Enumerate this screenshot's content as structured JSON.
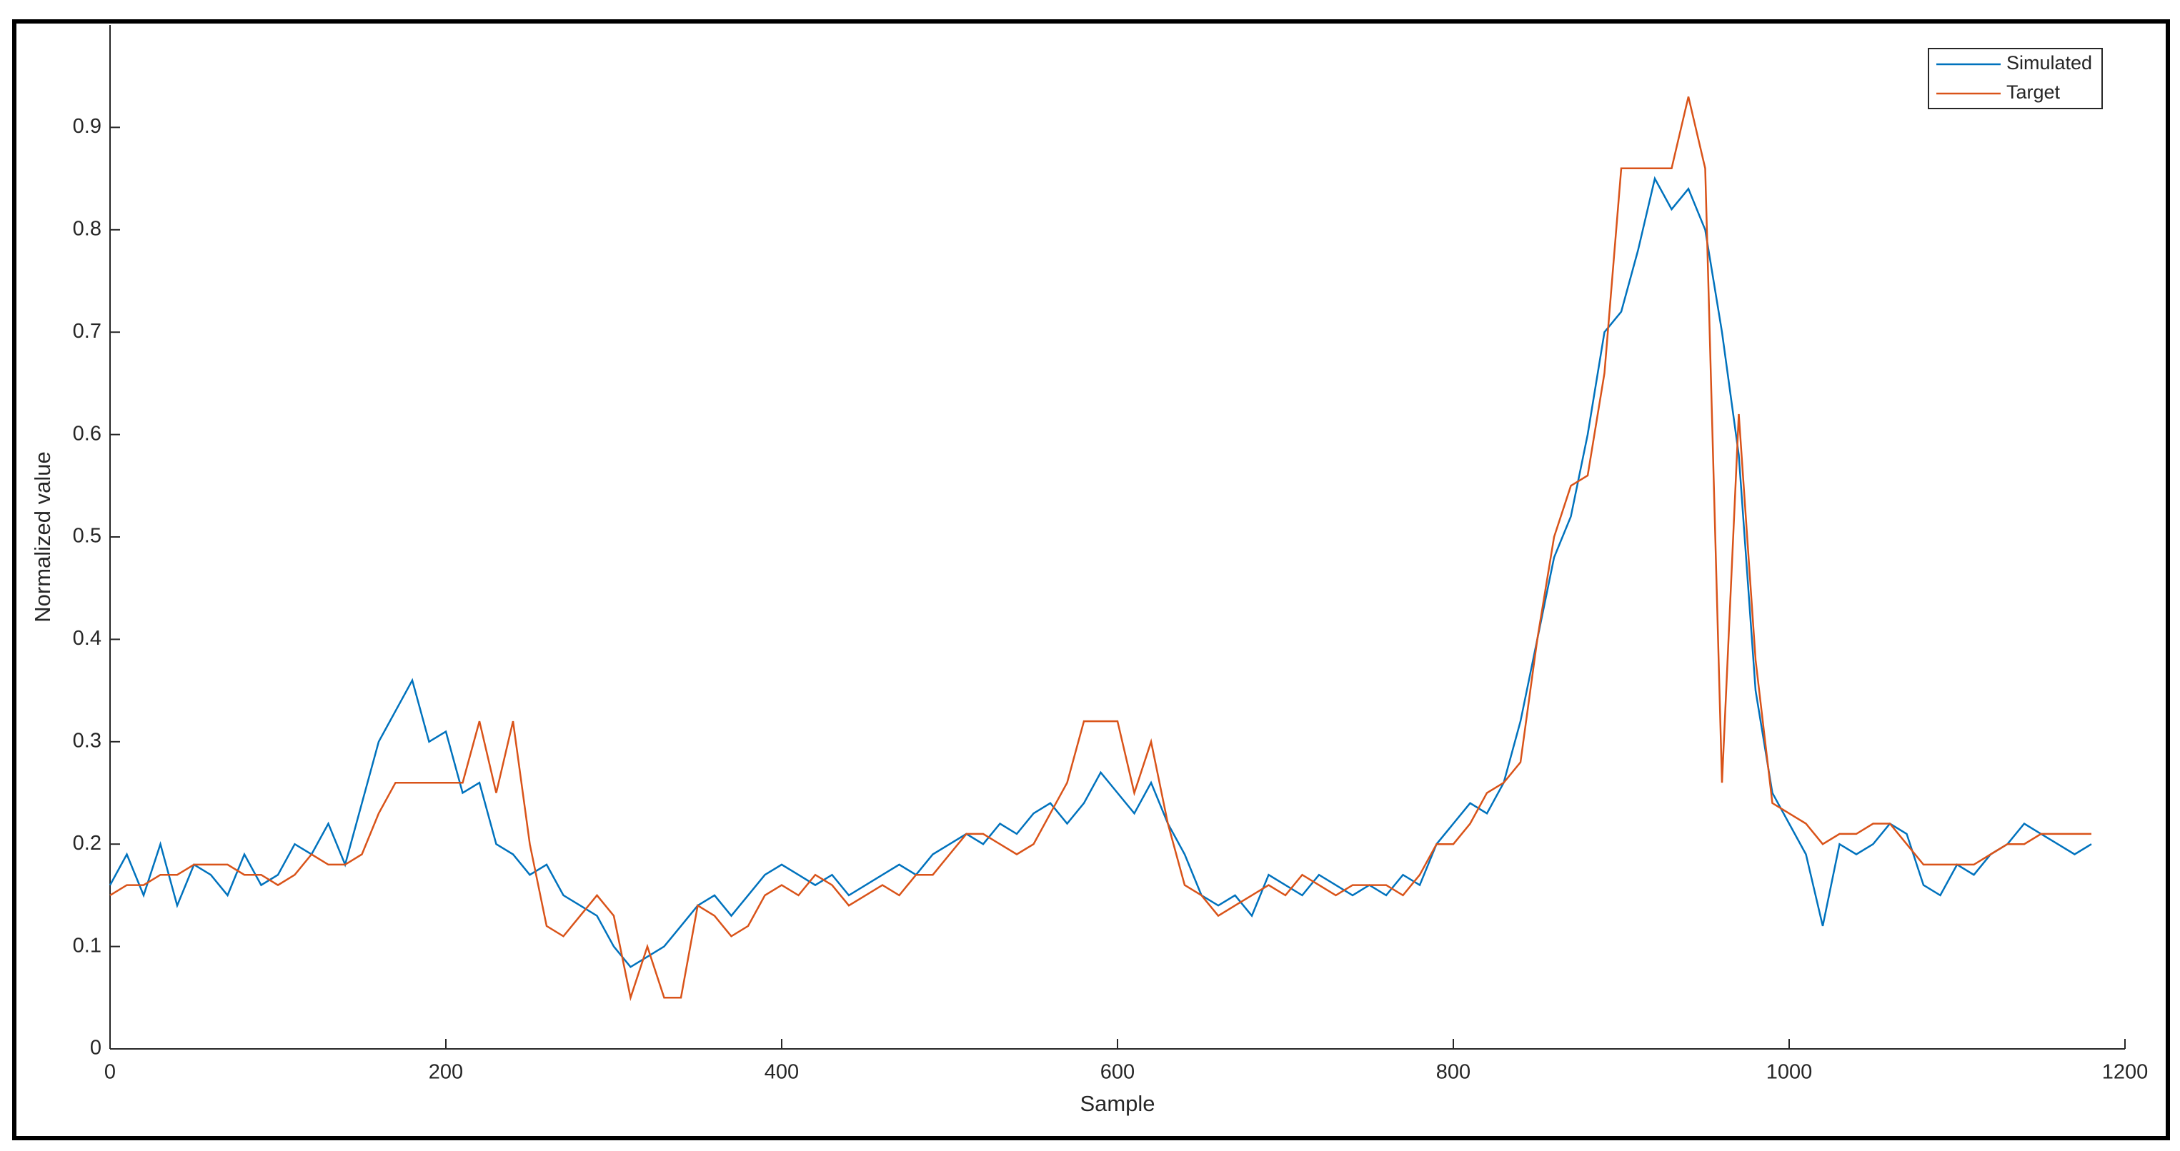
{
  "chart_data": {
    "type": "line",
    "xlabel": "Sample",
    "ylabel": "Normalized value",
    "x": [
      0,
      10,
      20,
      30,
      40,
      50,
      60,
      70,
      80,
      90,
      100,
      110,
      120,
      130,
      140,
      150,
      160,
      170,
      180,
      190,
      200,
      210,
      220,
      230,
      240,
      250,
      260,
      270,
      280,
      290,
      300,
      310,
      320,
      330,
      340,
      350,
      360,
      370,
      380,
      390,
      400,
      410,
      420,
      430,
      440,
      450,
      460,
      470,
      480,
      490,
      500,
      510,
      520,
      530,
      540,
      550,
      560,
      570,
      580,
      590,
      600,
      610,
      620,
      630,
      640,
      650,
      660,
      670,
      680,
      690,
      700,
      710,
      720,
      730,
      740,
      750,
      760,
      770,
      780,
      790,
      800,
      810,
      820,
      830,
      840,
      850,
      860,
      870,
      880,
      890,
      900,
      910,
      920,
      930,
      940,
      950,
      960,
      970,
      980,
      990,
      1000,
      1010,
      1020,
      1030,
      1040,
      1050,
      1060,
      1070,
      1080,
      1090,
      1100,
      1110,
      1120,
      1130,
      1140,
      1150,
      1160,
      1170,
      1180
    ],
    "series": [
      {
        "name": "Simulated",
        "color": "#0072bd",
        "values": [
          0.16,
          0.19,
          0.15,
          0.2,
          0.14,
          0.18,
          0.17,
          0.15,
          0.19,
          0.16,
          0.17,
          0.2,
          0.19,
          0.22,
          0.18,
          0.24,
          0.3,
          0.33,
          0.36,
          0.3,
          0.31,
          0.25,
          0.26,
          0.2,
          0.19,
          0.17,
          0.18,
          0.15,
          0.14,
          0.13,
          0.1,
          0.08,
          0.09,
          0.1,
          0.12,
          0.14,
          0.15,
          0.13,
          0.15,
          0.17,
          0.18,
          0.17,
          0.16,
          0.17,
          0.15,
          0.16,
          0.17,
          0.18,
          0.17,
          0.19,
          0.2,
          0.21,
          0.2,
          0.22,
          0.21,
          0.23,
          0.24,
          0.22,
          0.24,
          0.27,
          0.25,
          0.23,
          0.26,
          0.22,
          0.19,
          0.15,
          0.14,
          0.15,
          0.13,
          0.17,
          0.16,
          0.15,
          0.17,
          0.16,
          0.15,
          0.16,
          0.15,
          0.17,
          0.16,
          0.2,
          0.22,
          0.24,
          0.23,
          0.26,
          0.32,
          0.4,
          0.48,
          0.52,
          0.6,
          0.7,
          0.72,
          0.78,
          0.85,
          0.82,
          0.84,
          0.8,
          0.7,
          0.58,
          0.35,
          0.25,
          0.22,
          0.19,
          0.12,
          0.2,
          0.19,
          0.2,
          0.22,
          0.21,
          0.16,
          0.15,
          0.18,
          0.17,
          0.19,
          0.2,
          0.22,
          0.21,
          0.2,
          0.19,
          0.2
        ]
      },
      {
        "name": "Target",
        "color": "#d95319",
        "values": [
          0.15,
          0.16,
          0.16,
          0.17,
          0.17,
          0.18,
          0.18,
          0.18,
          0.17,
          0.17,
          0.16,
          0.17,
          0.19,
          0.18,
          0.18,
          0.19,
          0.23,
          0.26,
          0.26,
          0.26,
          0.26,
          0.26,
          0.32,
          0.25,
          0.32,
          0.2,
          0.12,
          0.11,
          0.13,
          0.15,
          0.13,
          0.05,
          0.1,
          0.05,
          0.05,
          0.14,
          0.13,
          0.11,
          0.12,
          0.15,
          0.16,
          0.15,
          0.17,
          0.16,
          0.14,
          0.15,
          0.16,
          0.15,
          0.17,
          0.17,
          0.19,
          0.21,
          0.21,
          0.2,
          0.19,
          0.2,
          0.23,
          0.26,
          0.32,
          0.32,
          0.32,
          0.25,
          0.3,
          0.22,
          0.16,
          0.15,
          0.13,
          0.14,
          0.15,
          0.16,
          0.15,
          0.17,
          0.16,
          0.15,
          0.16,
          0.16,
          0.16,
          0.15,
          0.17,
          0.2,
          0.2,
          0.22,
          0.25,
          0.26,
          0.28,
          0.4,
          0.5,
          0.55,
          0.56,
          0.66,
          0.86,
          0.86,
          0.86,
          0.86,
          0.93,
          0.86,
          0.26,
          0.62,
          0.38,
          0.24,
          0.23,
          0.22,
          0.2,
          0.21,
          0.21,
          0.22,
          0.22,
          0.2,
          0.18,
          0.18,
          0.18,
          0.18,
          0.19,
          0.2,
          0.2,
          0.21,
          0.21,
          0.21,
          0.21
        ]
      }
    ],
    "xlim": [
      0,
      1200
    ],
    "xticks": [
      0,
      200,
      400,
      600,
      800,
      1000,
      1200
    ],
    "ylim": [
      0,
      1
    ],
    "yticks": [
      0,
      0.1,
      0.2,
      0.3,
      0.4,
      0.5,
      0.6,
      0.7,
      0.8,
      0.9
    ],
    "legend": "upper right"
  }
}
